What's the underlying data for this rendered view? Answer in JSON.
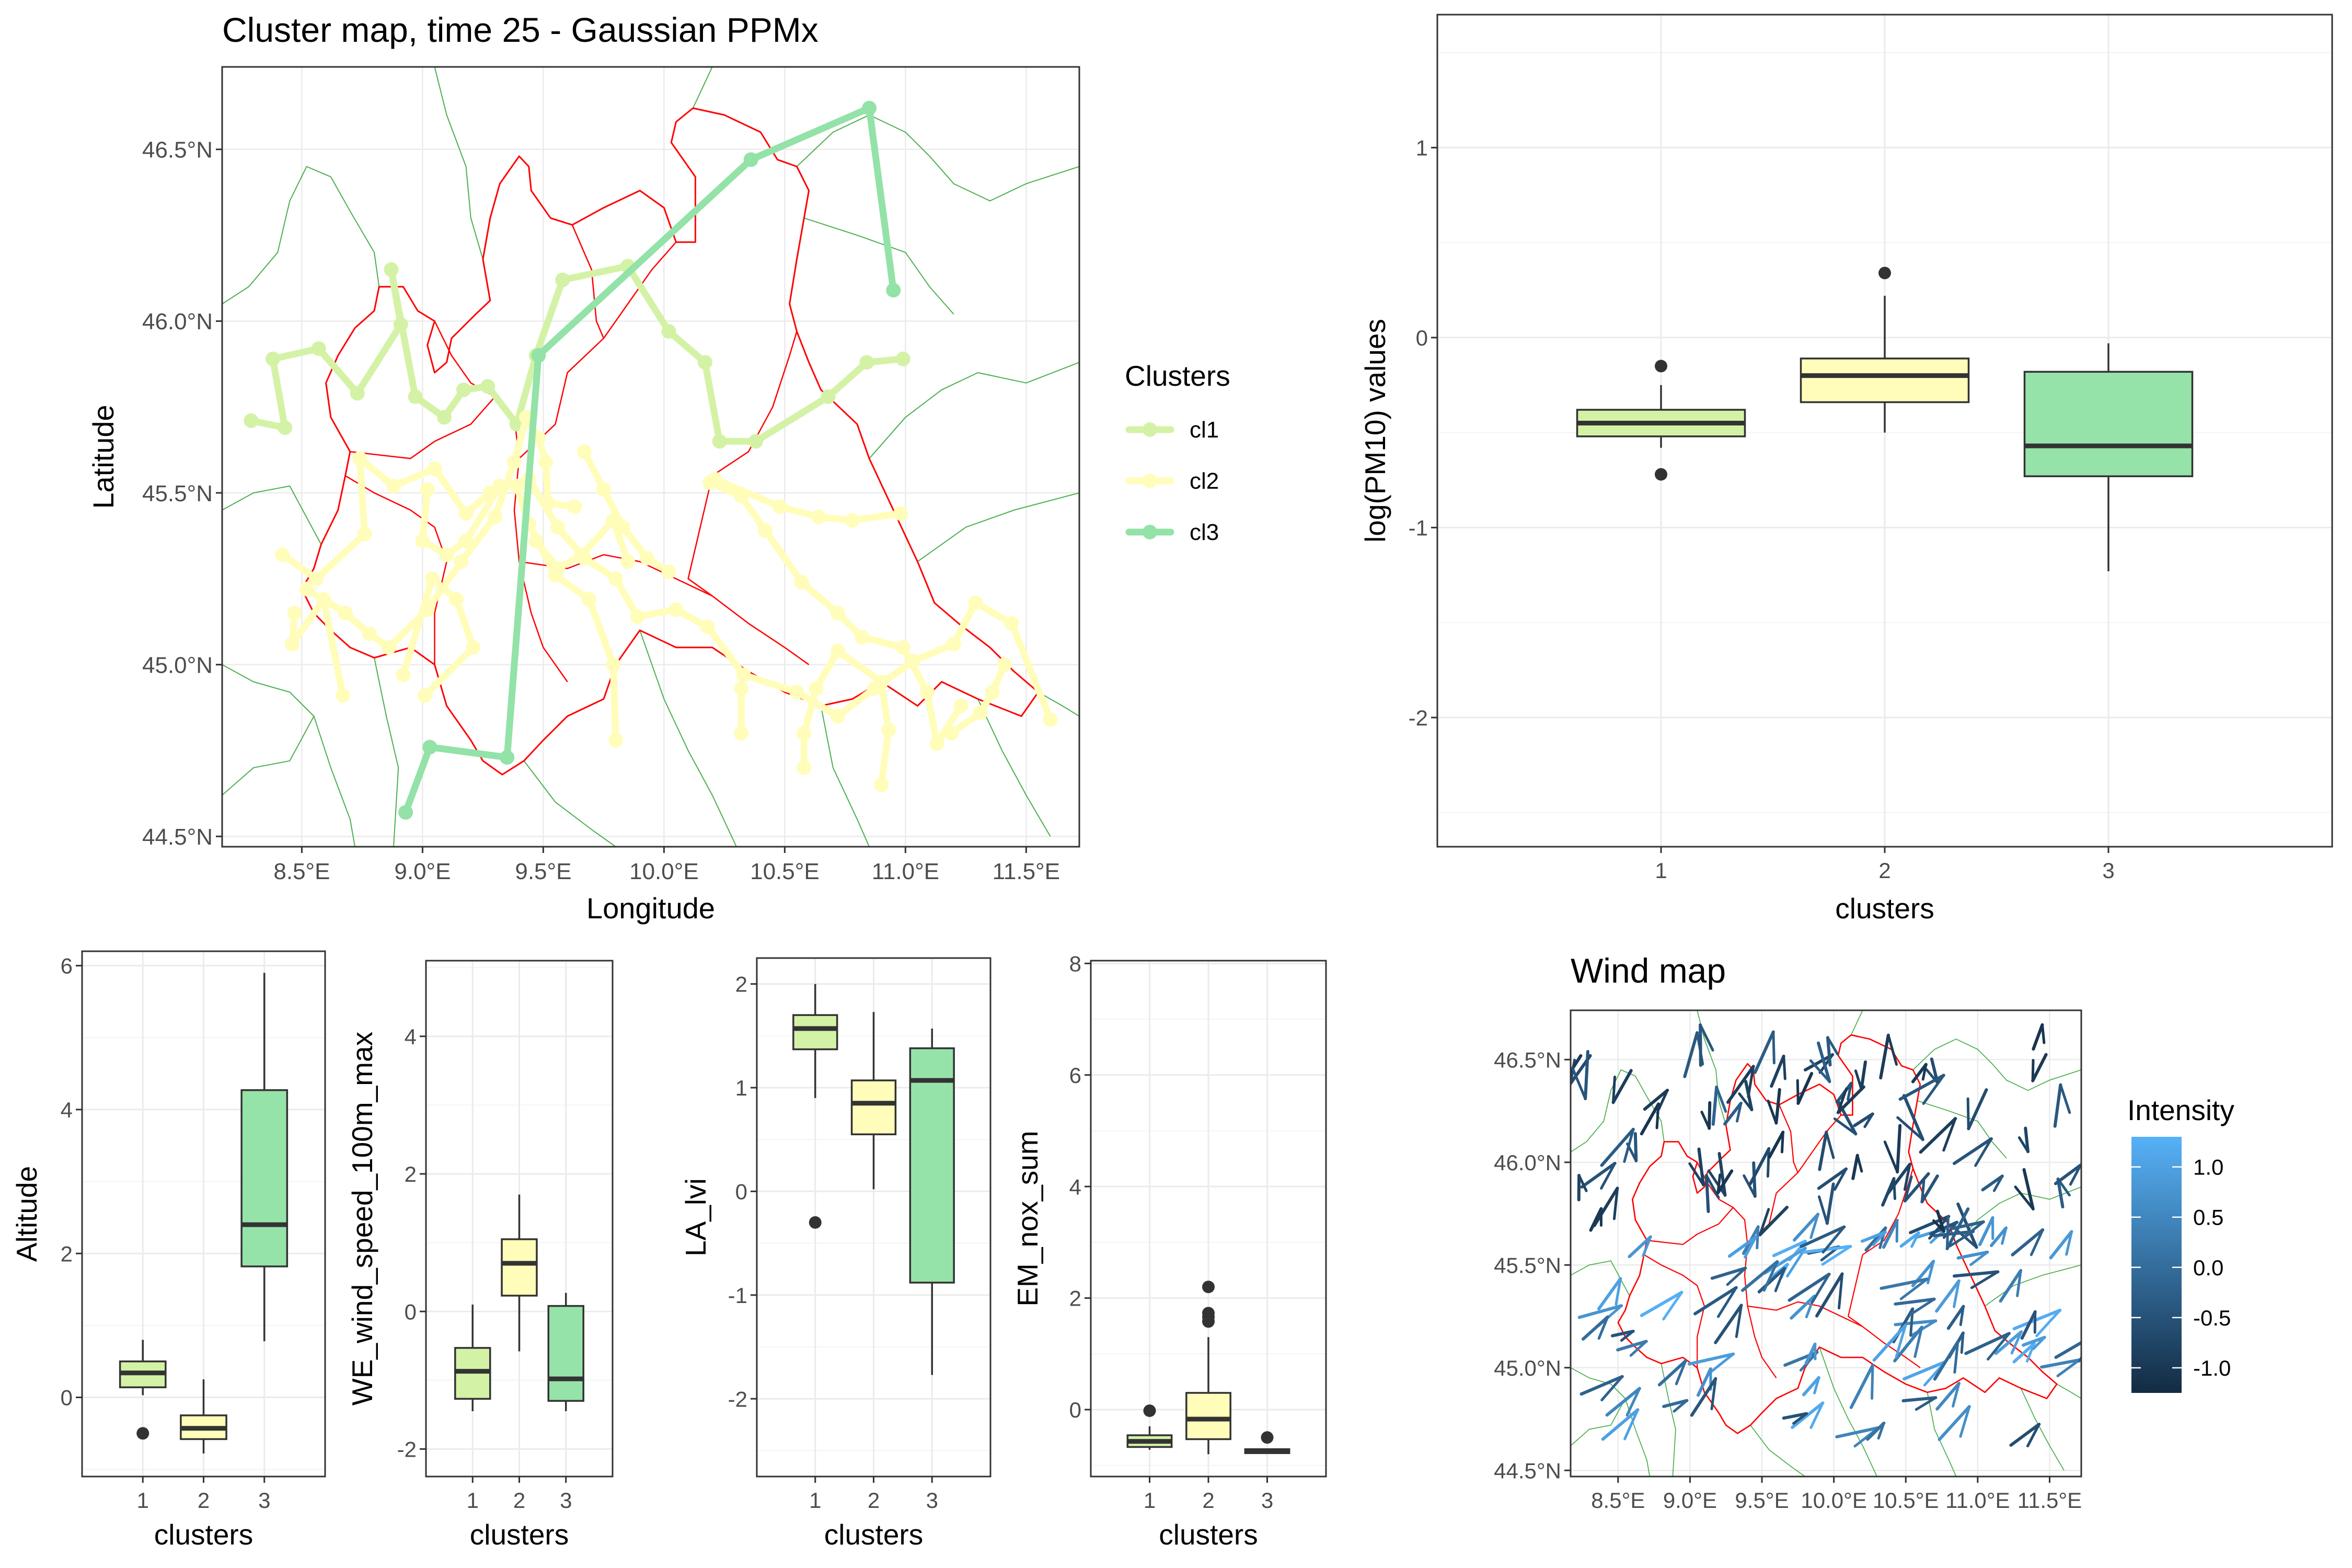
{
  "colors": {
    "cl1": "#D4F2A6",
    "cl2": "#FFFDB9",
    "cl3": "#96E3A9",
    "cl3_line": "#93E2A8",
    "border": "#ff0000",
    "country": "#4CAF50",
    "grid": "#ebebeb",
    "frame": "#333333",
    "wind_low": "#132B43",
    "wind_high": "#56B1F7"
  },
  "chart_data": [
    {
      "id": "cluster_map",
      "type": "scatter",
      "title": "Cluster map, time 25 - Gaussian PPMx",
      "xlabel": "Longitude",
      "ylabel": "Latitude",
      "xlim": [
        8.17,
        11.72
      ],
      "ylim": [
        44.47,
        46.74
      ],
      "x_ticks": [
        8.5,
        9.0,
        9.5,
        10.0,
        10.5,
        11.0,
        11.5
      ],
      "x_tick_labels": [
        "8.5°E",
        "9.0°E",
        "9.5°E",
        "10.0°E",
        "10.5°E",
        "11.0°E",
        "11.5°E"
      ],
      "y_ticks": [
        44.5,
        45.0,
        45.5,
        46.0,
        46.5
      ],
      "y_tick_labels": [
        "44.5°N",
        "45.0°N",
        "45.5°N",
        "46.0°N",
        "46.5°N"
      ],
      "grid": true,
      "legend": {
        "title": "Clusters",
        "position": "right",
        "entries": [
          "cl1",
          "cl2",
          "cl3"
        ]
      },
      "series": [
        {
          "name": "cl1",
          "color": "#D4F2A6",
          "paths": [
            [
              [
                8.29,
                45.71
              ],
              [
                8.43,
                45.69
              ],
              [
                8.38,
                45.89
              ],
              [
                8.57,
                45.92
              ],
              [
                8.73,
                45.79
              ],
              [
                8.91,
                45.99
              ],
              [
                8.87,
                46.15
              ],
              [
                8.97,
                45.78
              ],
              [
                9.09,
                45.72
              ],
              [
                9.17,
                45.8
              ],
              [
                9.27,
                45.81
              ],
              [
                9.39,
                45.7
              ],
              [
                9.47,
                45.9
              ],
              [
                9.58,
                46.12
              ],
              [
                9.85,
                46.16
              ],
              [
                10.02,
                45.97
              ],
              [
                10.17,
                45.88
              ],
              [
                10.23,
                45.65
              ],
              [
                10.38,
                45.65
              ],
              [
                10.68,
                45.78
              ],
              [
                10.84,
                45.88
              ],
              [
                10.99,
                45.89
              ]
            ]
          ]
        },
        {
          "name": "cl2",
          "color": "#FFFDB9",
          "paths": [
            [
              [
                8.42,
                45.32
              ],
              [
                8.56,
                45.25
              ],
              [
                8.76,
                45.38
              ],
              [
                8.74,
                45.6
              ],
              [
                8.88,
                45.52
              ],
              [
                9.05,
                45.57
              ],
              [
                9.18,
                45.44
              ],
              [
                9.28,
                45.5
              ],
              [
                9.44,
                45.54
              ],
              [
                9.56,
                45.4
              ],
              [
                9.67,
                45.31
              ],
              [
                9.8,
                45.25
              ],
              [
                9.89,
                45.14
              ],
              [
                10.05,
                45.16
              ],
              [
                10.18,
                45.11
              ],
              [
                10.33,
                44.97
              ],
              [
                10.55,
                44.92
              ],
              [
                10.72,
                44.85
              ],
              [
                10.87,
                44.93
              ],
              [
                11.03,
                45.01
              ],
              [
                11.2,
                45.06
              ],
              [
                11.29,
                45.18
              ],
              [
                11.44,
                45.12
              ],
              [
                11.6,
                44.84
              ]
            ],
            [
              [
                8.52,
                45.22
              ],
              [
                8.68,
                45.15
              ],
              [
                8.78,
                45.09
              ],
              [
                8.86,
                45.05
              ],
              [
                9.02,
                45.16
              ],
              [
                9.16,
                45.3
              ],
              [
                9.3,
                45.43
              ],
              [
                9.38,
                45.59
              ],
              [
                9.43,
                45.72
              ],
              [
                9.48,
                45.66
              ],
              [
                9.51,
                45.59
              ],
              [
                9.52,
                45.47
              ],
              [
                9.63,
                45.46
              ]
            ],
            [
              [
                8.47,
                45.15
              ],
              [
                8.46,
                45.06
              ],
              [
                8.59,
                45.19
              ],
              [
                8.67,
                44.91
              ]
            ],
            [
              [
                8.92,
                44.97
              ],
              [
                9.04,
                45.25
              ],
              [
                9.14,
                45.19
              ],
              [
                9.21,
                45.05
              ],
              [
                9.01,
                44.91
              ]
            ],
            [
              [
                9.02,
                45.51
              ],
              [
                9.0,
                45.36
              ],
              [
                9.1,
                45.32
              ],
              [
                9.18,
                45.36
              ],
              [
                9.32,
                45.52
              ]
            ],
            [
              [
                9.47,
                45.36
              ],
              [
                9.56,
                45.28
              ],
              [
                9.66,
                45.32
              ],
              [
                9.79,
                45.42
              ],
              [
                9.85,
                45.3
              ]
            ],
            [
              [
                9.67,
                45.62
              ],
              [
                9.75,
                45.51
              ],
              [
                9.83,
                45.4
              ],
              [
                9.93,
                45.31
              ],
              [
                10.02,
                45.27
              ]
            ],
            [
              [
                9.39,
                45.52
              ],
              [
                9.44,
                45.41
              ],
              [
                9.55,
                45.26
              ],
              [
                9.69,
                45.19
              ],
              [
                9.79,
                45.0
              ],
              [
                9.8,
                44.78
              ]
            ],
            [
              [
                10.19,
                45.53
              ],
              [
                10.32,
                45.49
              ],
              [
                10.42,
                45.39
              ],
              [
                10.57,
                45.24
              ],
              [
                10.72,
                45.15
              ],
              [
                10.82,
                45.08
              ],
              [
                10.99,
                45.05
              ],
              [
                11.09,
                44.92
              ],
              [
                11.13,
                44.77
              ],
              [
                11.23,
                44.88
              ]
            ],
            [
              [
                10.21,
                45.54
              ],
              [
                10.48,
                45.46
              ],
              [
                10.64,
                45.43
              ],
              [
                10.78,
                45.42
              ],
              [
                10.98,
                45.44
              ]
            ],
            [
              [
                10.58,
                44.7
              ],
              [
                10.58,
                44.8
              ],
              [
                10.63,
                44.93
              ],
              [
                10.72,
                45.04
              ],
              [
                10.9,
                44.95
              ],
              [
                10.93,
                44.81
              ],
              [
                10.9,
                44.65
              ]
            ],
            [
              [
                10.32,
                44.8
              ],
              [
                10.32,
                44.93
              ]
            ],
            [
              [
                11.19,
                44.8
              ],
              [
                11.31,
                44.86
              ],
              [
                11.36,
                44.92
              ],
              [
                11.41,
                45.0
              ]
            ]
          ]
        },
        {
          "name": "cl3",
          "color": "#93E2A8",
          "paths": [
            [
              [
                8.93,
                44.57
              ],
              [
                9.03,
                44.76
              ],
              [
                9.35,
                44.73
              ],
              [
                9.48,
                45.9
              ],
              [
                10.36,
                46.47
              ],
              [
                10.85,
                46.62
              ],
              [
                10.95,
                46.09
              ]
            ]
          ]
        }
      ]
    },
    {
      "id": "pm10_box",
      "type": "box",
      "xlabel": "clusters",
      "ylabel": "log(PM10) values",
      "categories": [
        "1",
        "2",
        "3"
      ],
      "ylim": [
        -2.68,
        1.7
      ],
      "y_ticks": [
        -2,
        -1,
        0,
        1
      ],
      "y_tick_labels": [
        "-2",
        "-1",
        "0",
        "1"
      ],
      "grid": true,
      "boxes": [
        {
          "cluster": "1",
          "color": "#D4F2A6",
          "whisker_low": -0.58,
          "q1": -0.52,
          "median": -0.45,
          "q3": -0.38,
          "whisker_high": -0.25,
          "outliers": [
            -0.15,
            -0.72
          ]
        },
        {
          "cluster": "2",
          "color": "#FFFDB9",
          "whisker_low": -0.5,
          "q1": -0.34,
          "median": -0.2,
          "q3": -0.11,
          "whisker_high": 0.22,
          "outliers": [
            0.34
          ]
        },
        {
          "cluster": "3",
          "color": "#96E3A9",
          "whisker_low": -1.23,
          "q1": -0.73,
          "median": -0.57,
          "q3": -0.18,
          "whisker_high": -0.03,
          "outliers": []
        }
      ]
    },
    {
      "id": "altitude_box",
      "type": "box",
      "xlabel": "clusters",
      "ylabel": "Altitude",
      "categories": [
        "1",
        "2",
        "3"
      ],
      "ylim": [
        -1.1,
        6.2
      ],
      "y_ticks": [
        0,
        2,
        4,
        6
      ],
      "y_tick_labels": [
        "0",
        "2",
        "4",
        "6"
      ],
      "grid": true,
      "boxes": [
        {
          "cluster": "1",
          "color": "#D4F2A6",
          "whisker_low": 0.03,
          "q1": 0.14,
          "median": 0.34,
          "q3": 0.5,
          "whisker_high": 0.8,
          "outliers": [
            -0.5
          ]
        },
        {
          "cluster": "2",
          "color": "#FFFDB9",
          "whisker_low": -0.78,
          "q1": -0.58,
          "median": -0.43,
          "q3": -0.25,
          "whisker_high": 0.25,
          "outliers": []
        },
        {
          "cluster": "3",
          "color": "#96E3A9",
          "whisker_low": 0.78,
          "q1": 1.82,
          "median": 2.4,
          "q3": 4.27,
          "whisker_high": 5.9,
          "outliers": []
        }
      ]
    },
    {
      "id": "we_wind_box",
      "type": "box",
      "xlabel": "clusters",
      "ylabel": "WE_wind_speed_100m_max",
      "categories": [
        "1",
        "2",
        "3"
      ],
      "ylim": [
        -2.4,
        5.1
      ],
      "y_ticks": [
        -2,
        0,
        2,
        4
      ],
      "y_tick_labels": [
        "-2",
        "0",
        "2",
        "4"
      ],
      "grid": true,
      "boxes": [
        {
          "cluster": "1",
          "color": "#D4F2A6",
          "whisker_low": -1.45,
          "q1": -1.27,
          "median": -0.87,
          "q3": -0.53,
          "whisker_high": 0.1,
          "outliers": []
        },
        {
          "cluster": "2",
          "color": "#FFFDB9",
          "whisker_low": -0.58,
          "q1": 0.23,
          "median": 0.7,
          "q3": 1.05,
          "whisker_high": 1.7,
          "outliers": []
        },
        {
          "cluster": "3",
          "color": "#96E3A9",
          "whisker_low": -1.45,
          "q1": -1.3,
          "median": -0.98,
          "q3": 0.08,
          "whisker_high": 0.27,
          "outliers": []
        }
      ]
    },
    {
      "id": "la_lvi_box",
      "type": "box",
      "xlabel": "clusters",
      "ylabel": "LA_lvi",
      "categories": [
        "1",
        "2",
        "3"
      ],
      "ylim": [
        -2.75,
        2.25
      ],
      "y_ticks": [
        -2,
        -1,
        0,
        1,
        2
      ],
      "y_tick_labels": [
        "-2",
        "-1",
        "0",
        "1",
        "2"
      ],
      "grid": true,
      "boxes": [
        {
          "cluster": "1",
          "color": "#D4F2A6",
          "whisker_low": 0.9,
          "q1": 1.37,
          "median": 1.57,
          "q3": 1.7,
          "whisker_high": 2.0,
          "outliers": [
            -0.3
          ]
        },
        {
          "cluster": "2",
          "color": "#FFFDB9",
          "whisker_low": 0.02,
          "q1": 0.55,
          "median": 0.85,
          "q3": 1.07,
          "whisker_high": 1.73,
          "outliers": []
        },
        {
          "cluster": "3",
          "color": "#96E3A9",
          "whisker_low": -1.77,
          "q1": -0.88,
          "median": 1.07,
          "q3": 1.38,
          "whisker_high": 1.57,
          "outliers": []
        }
      ]
    },
    {
      "id": "em_nox_box",
      "type": "box",
      "xlabel": "clusters",
      "ylabel": "EM_nox_sum",
      "categories": [
        "1",
        "2",
        "3"
      ],
      "ylim": [
        -1.2,
        8.05
      ],
      "y_ticks": [
        0,
        2,
        4,
        6,
        8
      ],
      "y_tick_labels": [
        "0",
        "2",
        "4",
        "6",
        "8"
      ],
      "grid": true,
      "boxes": [
        {
          "cluster": "1",
          "color": "#D4F2A6",
          "whisker_low": -0.72,
          "q1": -0.67,
          "median": -0.57,
          "q3": -0.46,
          "whisker_high": -0.3,
          "outliers": [
            -0.02
          ]
        },
        {
          "cluster": "2",
          "color": "#FFFDB9",
          "whisker_low": -0.8,
          "q1": -0.53,
          "median": -0.17,
          "q3": 0.3,
          "whisker_high": 1.3,
          "outliers": [
            1.58,
            1.66,
            1.73,
            2.2
          ]
        },
        {
          "cluster": "3",
          "color": "#96E3A9",
          "whisker_low": -0.79,
          "q1": -0.78,
          "median": -0.74,
          "q3": -0.71,
          "whisker_high": -0.7,
          "outliers": [
            -0.5
          ]
        }
      ]
    },
    {
      "id": "wind_map",
      "type": "vector_field",
      "title": "Wind map",
      "xlim": [
        8.17,
        11.72
      ],
      "ylim": [
        44.47,
        46.74
      ],
      "x_ticks": [
        8.5,
        9.0,
        9.5,
        10.0,
        10.5,
        11.0,
        11.5
      ],
      "x_tick_labels": [
        "8.5°E",
        "9.0°E",
        "9.5°E",
        "10.0°E",
        "10.5°E",
        "11.0°E",
        "11.5°E"
      ],
      "y_ticks": [
        44.5,
        45.0,
        45.5,
        46.0,
        46.5
      ],
      "y_tick_labels": [
        "44.5°N",
        "45.0°N",
        "45.5°N",
        "46.0°N",
        "46.5°N"
      ],
      "grid": true,
      "legend": {
        "title": "Intensity",
        "position": "right",
        "min": -1.25,
        "max": 1.3,
        "ticks": [
          1.0,
          0.5,
          0.0,
          -0.5,
          -1.0
        ],
        "tick_labels": [
          "1.0",
          "0.5",
          "0.0",
          "-0.5",
          "-1.0"
        ]
      }
    }
  ]
}
